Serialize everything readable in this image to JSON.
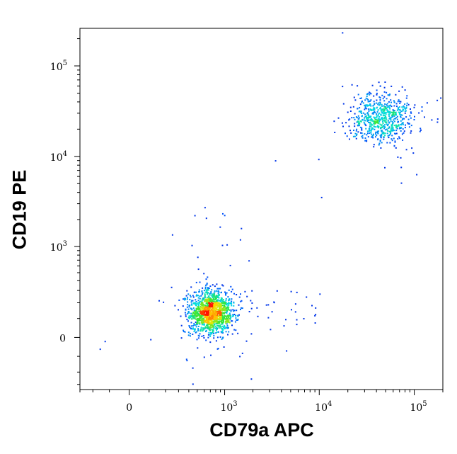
{
  "chart_data": {
    "type": "scatter",
    "title": "",
    "xlabel": "CD79a APC",
    "ylabel": "CD19 PE",
    "x_scale": "biexponential",
    "y_scale": "biexponential",
    "xlim": [
      -300,
      200000
    ],
    "ylim": [
      -350,
      260000
    ],
    "x_ticks": [
      {
        "value": 0,
        "base": "0",
        "exp": ""
      },
      {
        "value": 1000,
        "base": "10",
        "exp": "3"
      },
      {
        "value": 10000,
        "base": "10",
        "exp": "4"
      },
      {
        "value": 100000,
        "base": "10",
        "exp": "5"
      }
    ],
    "y_ticks": [
      {
        "value": 0,
        "base": "0",
        "exp": ""
      },
      {
        "value": 1000,
        "base": "10",
        "exp": "3"
      },
      {
        "value": 10000,
        "base": "10",
        "exp": "4"
      },
      {
        "value": 100000,
        "base": "10",
        "exp": "5"
      }
    ],
    "coloring": "density (blue-cyan-green-yellow-red)",
    "grid": false,
    "series": [
      {
        "population": "CD79a- CD19-",
        "center": [
          700,
          140
        ],
        "approx_events": 1400
      },
      {
        "population": "CD79a+ CD19+",
        "center": [
          45000,
          27000
        ],
        "approx_events": 700
      }
    ]
  }
}
